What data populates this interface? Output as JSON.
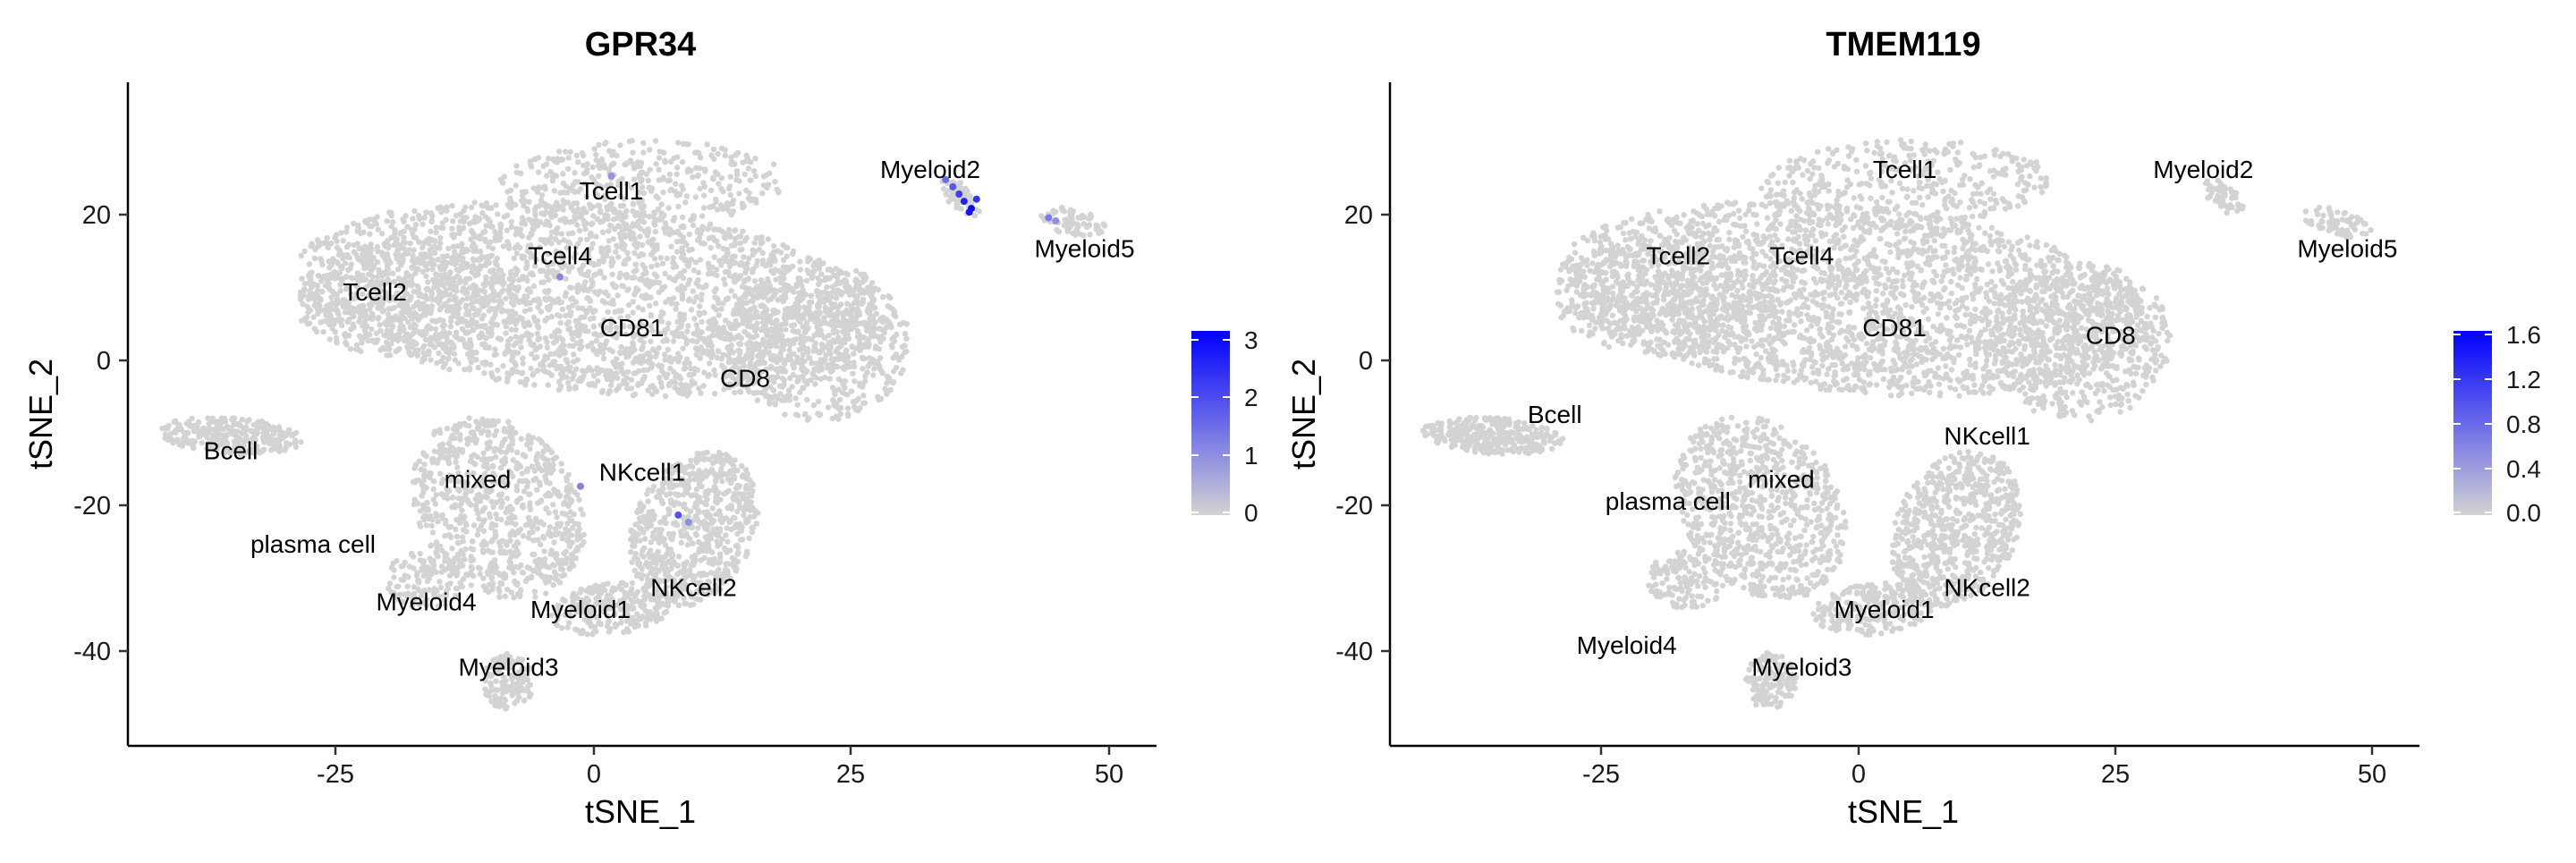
{
  "chart_data": [
    {
      "type": "scatter",
      "title": "GPR34",
      "xlabel": "tSNE_1",
      "ylabel": "tSNE_2",
      "xlim": [
        -45,
        55
      ],
      "ylim": [
        -53,
        39
      ],
      "xticks": [
        {
          "value": -25,
          "label": "-25"
        },
        {
          "value": 0,
          "label": "0"
        },
        {
          "value": 25,
          "label": "25"
        },
        {
          "value": 50,
          "label": "50"
        }
      ],
      "yticks": [
        {
          "value": 20,
          "label": "20"
        },
        {
          "value": 0,
          "label": "0"
        },
        {
          "value": -20,
          "label": "-20"
        },
        {
          "value": -40,
          "label": "-40"
        }
      ],
      "color_scale": {
        "low": "#d3d3d3",
        "high": "#0000ff",
        "min": 0,
        "max": 3.1
      },
      "legend": {
        "position": "right",
        "ticks": [
          {
            "value": 0,
            "label": "0"
          },
          {
            "value": 1,
            "label": "1"
          },
          {
            "value": 2,
            "label": "2"
          },
          {
            "value": 3,
            "label": "3"
          }
        ]
      },
      "cluster_labels": [
        {
          "text": "Tcell1",
          "x": 2,
          "y": 24
        },
        {
          "text": "Tcell4",
          "x": -3,
          "y": 15
        },
        {
          "text": "Tcell2",
          "x": -21,
          "y": 10
        },
        {
          "text": "CD81",
          "x": 4,
          "y": 5
        },
        {
          "text": "CD8",
          "x": 15,
          "y": -2
        },
        {
          "text": "Myeloid2",
          "x": 33,
          "y": 27
        },
        {
          "text": "Myeloid5",
          "x": 48,
          "y": 16
        },
        {
          "text": "Bcell",
          "x": -35,
          "y": -12
        },
        {
          "text": "mixed",
          "x": -11,
          "y": -16
        },
        {
          "text": "NKcell1",
          "x": 5,
          "y": -15
        },
        {
          "text": "plasma cell",
          "x": -27,
          "y": -25
        },
        {
          "text": "Myeloid4",
          "x": -16,
          "y": -33
        },
        {
          "text": "Myeloid1",
          "x": -1,
          "y": -34
        },
        {
          "text": "NKcell2",
          "x": 10,
          "y": -31
        },
        {
          "text": "Myeloid3",
          "x": -8,
          "y": -42
        }
      ],
      "expressing_cells": [
        {
          "x": 2,
          "y": 26,
          "value": 0.9
        },
        {
          "x": -3,
          "y": 12,
          "value": 1.1
        },
        {
          "x": -1,
          "y": -17,
          "value": 1.2
        },
        {
          "x": 8.5,
          "y": -21,
          "value": 1.9
        },
        {
          "x": 9.5,
          "y": -22,
          "value": 1.0
        },
        {
          "x": 34.5,
          "y": 25.5,
          "value": 1.5
        },
        {
          "x": 35.2,
          "y": 24.5,
          "value": 1.8
        },
        {
          "x": 35.8,
          "y": 23.5,
          "value": 2.2
        },
        {
          "x": 36.3,
          "y": 22.5,
          "value": 2.6
        },
        {
          "x": 37,
          "y": 21.5,
          "value": 3.0
        },
        {
          "x": 37.5,
          "y": 22.8,
          "value": 2.4
        },
        {
          "x": 36.8,
          "y": 21,
          "value": 2.8
        },
        {
          "x": 44.5,
          "y": 20.2,
          "value": 1.3
        },
        {
          "x": 45.2,
          "y": 19.8,
          "value": 1.0
        }
      ]
    },
    {
      "type": "scatter",
      "title": "TMEM119",
      "xlabel": "tSNE_1",
      "ylabel": "tSNE_2",
      "xlim": [
        -45,
        55
      ],
      "ylim": [
        -53,
        39
      ],
      "xticks": [
        {
          "value": -25,
          "label": "-25"
        },
        {
          "value": 0,
          "label": "0"
        },
        {
          "value": 25,
          "label": "25"
        },
        {
          "value": 50,
          "label": "50"
        }
      ],
      "yticks": [
        {
          "value": 20,
          "label": "20"
        },
        {
          "value": 0,
          "label": "0"
        },
        {
          "value": -20,
          "label": "-20"
        },
        {
          "value": -40,
          "label": "-40"
        }
      ],
      "color_scale": {
        "low": "#d3d3d3",
        "high": "#0000ff",
        "min": 0,
        "max": 1.65
      },
      "legend": {
        "position": "right",
        "ticks": [
          {
            "value": 0.0,
            "label": "0.0"
          },
          {
            "value": 0.4,
            "label": "0.4"
          },
          {
            "value": 0.8,
            "label": "0.8"
          },
          {
            "value": 1.2,
            "label": "1.2"
          },
          {
            "value": 1.6,
            "label": "1.6"
          }
        ]
      },
      "cluster_labels": [
        {
          "text": "Tcell1",
          "x": 5,
          "y": 27
        },
        {
          "text": "Myeloid2",
          "x": 34,
          "y": 27
        },
        {
          "text": "Tcell2",
          "x": -17,
          "y": 15
        },
        {
          "text": "Tcell4",
          "x": -5,
          "y": 15
        },
        {
          "text": "Myeloid5",
          "x": 48,
          "y": 16
        },
        {
          "text": "CD81",
          "x": 4,
          "y": 5
        },
        {
          "text": "CD8",
          "x": 25,
          "y": 4
        },
        {
          "text": "Bcell",
          "x": -29,
          "y": -7
        },
        {
          "text": "NKcell1",
          "x": 13,
          "y": -10
        },
        {
          "text": "mixed",
          "x": -7,
          "y": -16
        },
        {
          "text": "plasma cell",
          "x": -18,
          "y": -19
        },
        {
          "text": "NKcell2",
          "x": 13,
          "y": -31
        },
        {
          "text": "Myeloid1",
          "x": 3,
          "y": -34
        },
        {
          "text": "Myeloid4",
          "x": -22,
          "y": -39
        },
        {
          "text": "Myeloid3",
          "x": -5,
          "y": -42
        }
      ],
      "expressing_cells": []
    }
  ]
}
